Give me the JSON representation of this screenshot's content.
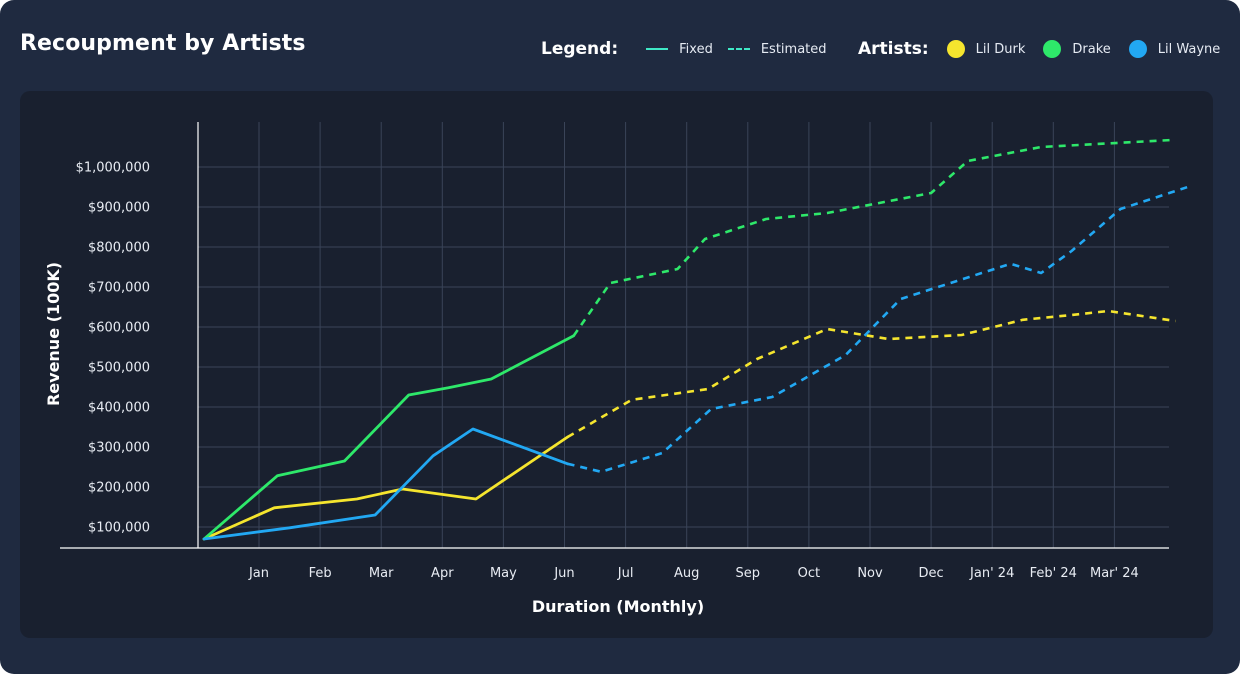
{
  "title": "Recoupment by Artists",
  "legend": {
    "heading": "Legend:",
    "fixed_label": "Fixed",
    "estimated_label": "Estimated"
  },
  "artists_legend": {
    "heading": "Artists:",
    "items": [
      {
        "name": "Lil Durk",
        "color": "#f5e52e"
      },
      {
        "name": "Drake",
        "color": "#2ee86a"
      },
      {
        "name": "Lil Wayne",
        "color": "#22a8f3"
      }
    ]
  },
  "chart_data": {
    "type": "line",
    "title": "Recoupment by Artists",
    "xlabel": "Duration (Monthly)",
    "ylabel": "Revenue (100K)",
    "categories": [
      "Jan",
      "Feb",
      "Mar",
      "Apr",
      "May",
      "Jun",
      "Jul",
      "Aug",
      "Sep",
      "Oct",
      "Nov",
      "Dec",
      "Jan' 24",
      "Feb' 24",
      "Mar' 24"
    ],
    "y_ticks": [
      "$100,000",
      "$200,000",
      "$300,000",
      "$400,000",
      "$500,000",
      "$600,000",
      "$700,000",
      "$800,000",
      "$900,000",
      "$1,000,000"
    ],
    "ylim": [
      60000,
      1100000
    ],
    "grid": true,
    "series": [
      {
        "name": "Lil Durk",
        "color": "#f5e52e",
        "fixed": [
          [
            -0.9,
            70000
          ],
          [
            0.25,
            148000
          ],
          [
            1.6,
            170000
          ],
          [
            2.35,
            195000
          ],
          [
            3.55,
            170000
          ],
          [
            5.05,
            325000
          ]
        ],
        "estimated": [
          [
            5.05,
            325000
          ],
          [
            6.1,
            418000
          ],
          [
            7.35,
            445000
          ],
          [
            8.15,
            520000
          ],
          [
            9.3,
            595000
          ],
          [
            10.3,
            570000
          ],
          [
            11.5,
            580000
          ],
          [
            12.5,
            618000
          ],
          [
            13.3,
            630000
          ],
          [
            13.9,
            640000
          ],
          [
            15.0,
            615000
          ]
        ]
      },
      {
        "name": "Drake",
        "color": "#2ee86a",
        "fixed": [
          [
            -0.9,
            70000
          ],
          [
            0.3,
            228000
          ],
          [
            1.4,
            265000
          ],
          [
            2.45,
            430000
          ],
          [
            3.1,
            448000
          ],
          [
            3.8,
            470000
          ],
          [
            5.15,
            578000
          ]
        ],
        "estimated": [
          [
            5.15,
            578000
          ],
          [
            5.75,
            710000
          ],
          [
            6.85,
            745000
          ],
          [
            7.3,
            820000
          ],
          [
            8.3,
            870000
          ],
          [
            9.3,
            885000
          ],
          [
            11.0,
            935000
          ],
          [
            11.6,
            1015000
          ],
          [
            12.8,
            1050000
          ],
          [
            15.0,
            1068000
          ]
        ]
      },
      {
        "name": "Lil Wayne",
        "color": "#22a8f3",
        "fixed": [
          [
            -0.9,
            70000
          ],
          [
            0.5,
            98000
          ],
          [
            1.9,
            130000
          ],
          [
            2.85,
            278000
          ],
          [
            3.5,
            345000
          ],
          [
            5.05,
            258000
          ]
        ],
        "estimated": [
          [
            5.05,
            258000
          ],
          [
            5.6,
            238000
          ],
          [
            6.6,
            285000
          ],
          [
            7.4,
            395000
          ],
          [
            8.4,
            425000
          ],
          [
            9.6,
            530000
          ],
          [
            10.5,
            670000
          ],
          [
            12.3,
            758000
          ],
          [
            12.8,
            735000
          ],
          [
            13.3,
            790000
          ],
          [
            14.1,
            895000
          ],
          [
            15.2,
            950000
          ]
        ]
      }
    ]
  }
}
